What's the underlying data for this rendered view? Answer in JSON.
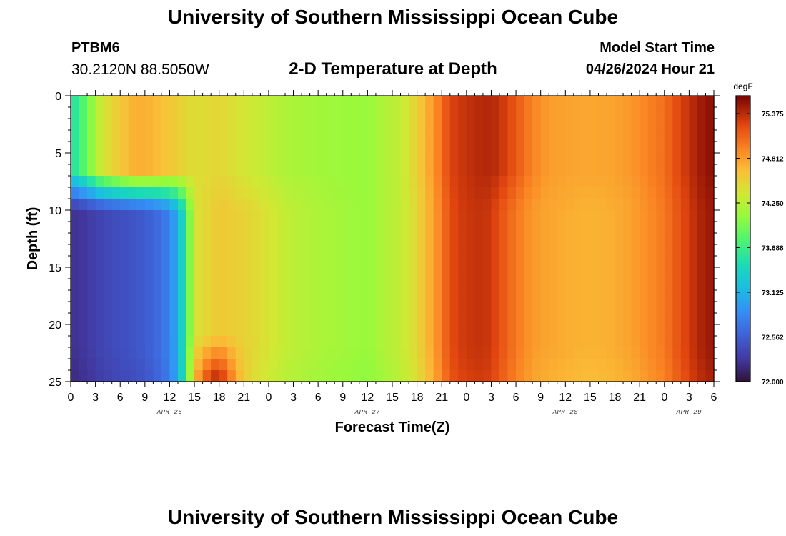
{
  "header": {
    "title": "University of Southern Mississippi Ocean Cube",
    "station_id": "PTBM6",
    "station_coords": "30.2120N  88.5050W",
    "chart_title": "2-D Temperature at Depth",
    "run_label": "Model Start Time",
    "run_value": "04/26/2024 Hour 21"
  },
  "footer": {
    "title": "University of Southern Mississippi Ocean Cube"
  },
  "chart_data": {
    "type": "heatmap",
    "title": "2-D Temperature at Depth",
    "xlabel": "Forecast Time(Z)",
    "ylabel": "Depth (ft)",
    "x_ticks": [
      "0",
      "3",
      "6",
      "9",
      "12",
      "15",
      "18",
      "21",
      "0",
      "3",
      "6",
      "9",
      "12",
      "15",
      "18",
      "21",
      "0",
      "3",
      "6",
      "9",
      "12",
      "15",
      "18",
      "21",
      "0",
      "3",
      "6"
    ],
    "x_range_hours": [
      0,
      78
    ],
    "date_labels": [
      {
        "text": "APR 26",
        "hour": 12
      },
      {
        "text": "APR 27",
        "hour": 36
      },
      {
        "text": "APR 28",
        "hour": 60
      },
      {
        "text": "APR 29",
        "hour": 75
      }
    ],
    "y_ticks": [
      "0",
      "5",
      "10",
      "15",
      "20",
      "25"
    ],
    "y_range_ft": [
      0,
      25
    ],
    "colorbar": {
      "unit": "degF",
      "min": 72.0,
      "max": 75.6,
      "ticks": [
        "75.375",
        "74.812",
        "74.250",
        "73.688",
        "73.125",
        "72.562",
        "72.000"
      ],
      "tick_values": [
        75.375,
        74.812,
        74.25,
        73.688,
        73.125,
        72.562,
        72.0
      ]
    },
    "temperature_by_hour": {
      "hours": [
        0,
        0.5,
        2,
        3,
        4,
        6,
        8,
        10,
        12,
        13,
        14,
        15,
        18,
        22,
        26,
        30,
        33,
        36,
        40,
        42,
        44,
        45,
        46,
        47,
        48,
        50,
        51,
        52,
        53,
        54,
        55,
        56,
        57,
        58,
        60,
        62,
        64,
        66,
        68,
        69,
        70,
        71,
        72,
        73,
        74,
        75,
        76,
        77,
        78
      ],
      "upper_layer_0_8ft": [
        73.5,
        73.6,
        73.9,
        74.2,
        74.4,
        74.6,
        74.75,
        74.7,
        74.6,
        74.55,
        74.5,
        74.45,
        74.5,
        74.35,
        74.2,
        74.15,
        74.12,
        74.1,
        74.3,
        74.55,
        74.85,
        75.05,
        75.25,
        75.3,
        75.35,
        75.4,
        75.4,
        75.35,
        75.25,
        75.15,
        75.05,
        74.95,
        74.88,
        74.82,
        74.8,
        74.78,
        74.78,
        74.8,
        74.85,
        74.9,
        74.95,
        75.0,
        75.05,
        75.15,
        75.25,
        75.35,
        75.45,
        75.5,
        75.55
      ],
      "lower_layer_10_24ft": [
        72.25,
        72.25,
        72.3,
        72.35,
        72.4,
        72.45,
        72.5,
        72.6,
        72.8,
        73.1,
        73.6,
        74.4,
        74.6,
        74.5,
        74.3,
        74.2,
        74.15,
        74.1,
        74.3,
        74.5,
        74.8,
        75.0,
        75.2,
        75.28,
        75.32,
        75.35,
        75.3,
        75.2,
        75.1,
        75.0,
        74.92,
        74.85,
        74.8,
        74.78,
        74.75,
        74.72,
        74.72,
        74.75,
        74.8,
        74.85,
        74.9,
        74.95,
        75.0,
        75.1,
        75.2,
        75.3,
        75.4,
        75.45,
        75.5
      ]
    }
  }
}
